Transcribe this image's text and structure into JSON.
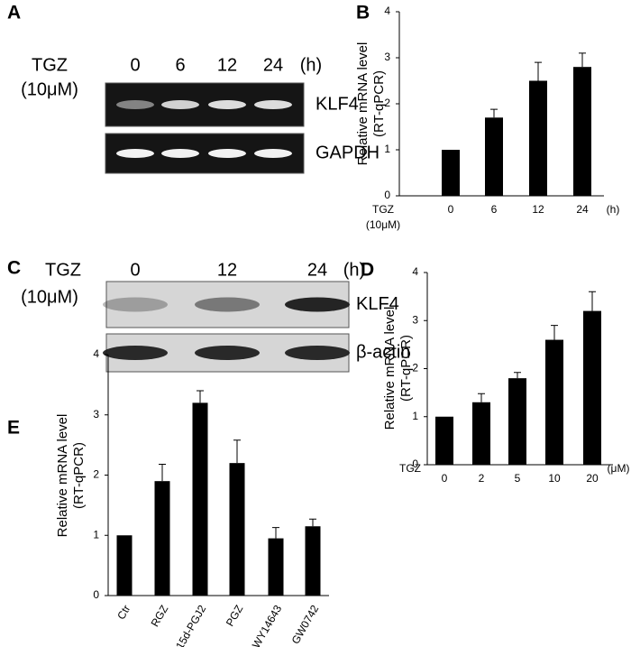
{
  "gels": [
    {
      "panel": "A",
      "treatment": [
        "TGZ",
        "(10μM)"
      ],
      "lanes": [
        "0",
        "6",
        "12",
        "24"
      ],
      "unit": "(h)",
      "bands": [
        "KLF4",
        "GAPDH"
      ]
    },
    {
      "panel": "C",
      "treatment": [
        "TGZ",
        "(10μM)"
      ],
      "lanes": [
        "0",
        "12",
        "24"
      ],
      "unit": "(h)",
      "bands": [
        "KLF4",
        "β-actin"
      ]
    }
  ],
  "chart_data": [
    {
      "type": "bar",
      "panel": "B",
      "ylabel": [
        "Relative mRNA level",
        "(RT-qPCR)"
      ],
      "xlabel": [
        "TGZ",
        "(10μM)"
      ],
      "unit": "(h)",
      "categories": [
        "0",
        "6",
        "12",
        "24"
      ],
      "values": [
        1,
        1.7,
        2.5,
        2.8
      ],
      "errors": [
        null,
        0.18,
        0.4,
        0.3
      ],
      "color": "#000000",
      "ylim": [
        0,
        4
      ],
      "yticks": [
        0,
        1,
        2,
        3,
        4
      ]
    },
    {
      "type": "bar",
      "panel": "D",
      "ylabel": [
        "Relative mRNA level",
        "(RT-qPCR)"
      ],
      "xlabel": [
        "TGZ"
      ],
      "unit": "(μM)",
      "categories": [
        "0",
        "2",
        "5",
        "10",
        "20"
      ],
      "values": [
        1,
        1.3,
        1.8,
        2.6,
        3.2
      ],
      "errors": [
        null,
        0.18,
        0.12,
        0.3,
        0.4
      ],
      "color": "#000000",
      "ylim": [
        0,
        4
      ],
      "yticks": [
        0,
        1,
        2,
        3,
        4
      ]
    },
    {
      "type": "bar",
      "panel": "E",
      "ylabel": [
        "Relative mRNA level",
        "(RT-qPCR)"
      ],
      "categories": [
        "Ctr",
        "RGZ",
        "15d-PGJ2",
        "PGZ",
        "WY14643",
        "GW0742"
      ],
      "values": [
        1,
        1.9,
        3.2,
        2.2,
        0.95,
        1.15
      ],
      "errors": [
        null,
        0.28,
        0.2,
        0.38,
        0.18,
        0.12
      ],
      "color": "#000000",
      "ylim": [
        0,
        4
      ],
      "yticks": [
        0,
        1,
        2,
        3,
        4
      ]
    }
  ]
}
